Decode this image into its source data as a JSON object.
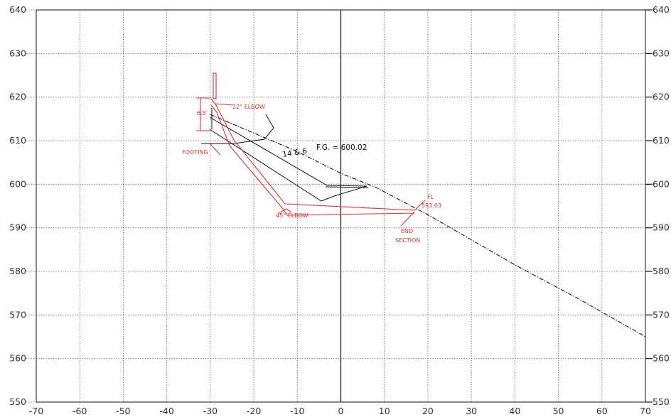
{
  "chart_data": {
    "type": "profile",
    "x_ticks": [
      "-70",
      "-60",
      "-50",
      "-40",
      "-30",
      "-20",
      "-10",
      "0",
      "10",
      "20",
      "30",
      "40",
      "50",
      "60",
      "70"
    ],
    "y_ticks": [
      "550",
      "560",
      "570",
      "580",
      "590",
      "600",
      "610",
      "620",
      "630",
      "640"
    ],
    "xlim": [
      -70,
      70
    ],
    "ylim": [
      550,
      640
    ],
    "grid": "dashed",
    "ground_line": [
      {
        "x": -30,
        "y": 616.0
      },
      {
        "x": -10,
        "y": 607.5
      },
      {
        "x": 0,
        "y": 602.5
      },
      {
        "x": 8,
        "y": 599.3
      },
      {
        "x": 20,
        "y": 593.0
      },
      {
        "x": 40,
        "y": 581.5
      },
      {
        "x": 55,
        "y": 573.5
      },
      {
        "x": 70,
        "y": 565.0
      }
    ],
    "annotations": {
      "fg_label": "F.G. = 600.02",
      "slope_label": "14 & 6",
      "elbow_22": "22° ELBOW",
      "height_65": "6.5'",
      "footing": "FOOTING",
      "elbow_45": "45° ELBOW",
      "fl_label": "FL",
      "fl_value": "593.03",
      "end_label": "END",
      "section_label": "SECTION"
    }
  }
}
